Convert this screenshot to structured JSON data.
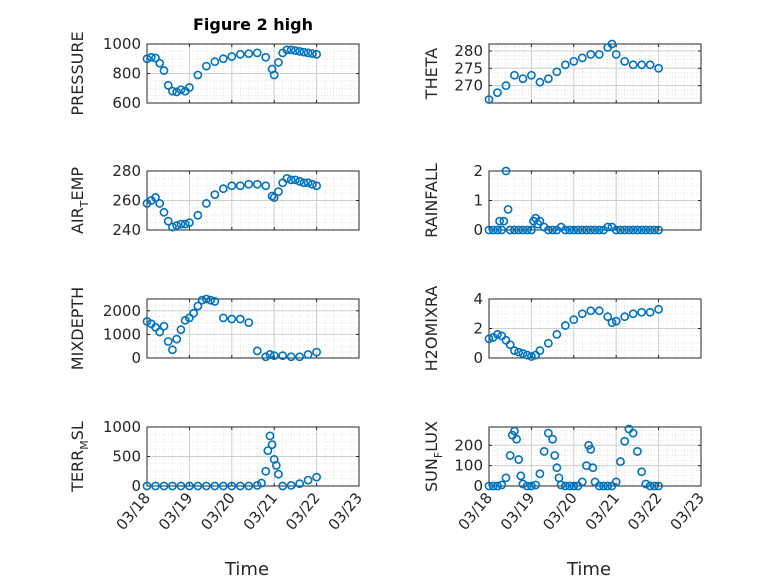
{
  "figure": {
    "title": "Figure 2 high",
    "x_tick_labels": [
      "03/18",
      "03/19",
      "03/20",
      "03/21",
      "03/22",
      "03/23"
    ],
    "x_label": "Time",
    "marker_color": "#0072BD",
    "marker": "open-circle"
  },
  "chart_data": [
    {
      "type": "scatter",
      "ylabel": "PRESSURE",
      "ylim": [
        600,
        1000
      ],
      "yticks": [
        600,
        800,
        1000
      ],
      "xlim": [
        0,
        5
      ],
      "grid": true,
      "x": [
        0,
        0.1,
        0.2,
        0.3,
        0.4,
        0.5,
        0.6,
        0.7,
        0.8,
        0.9,
        1.0,
        1.2,
        1.4,
        1.6,
        1.8,
        2.0,
        2.2,
        2.4,
        2.6,
        2.8,
        2.95,
        3.0,
        3.1,
        3.2,
        3.3,
        3.4,
        3.5,
        3.6,
        3.7,
        3.8,
        3.9,
        4.0
      ],
      "values": [
        900,
        910,
        905,
        870,
        820,
        720,
        680,
        675,
        690,
        680,
        705,
        790,
        850,
        880,
        900,
        915,
        930,
        935,
        940,
        910,
        830,
        790,
        875,
        940,
        960,
        960,
        955,
        950,
        945,
        940,
        935,
        930
      ]
    },
    {
      "type": "scatter",
      "ylabel": "THETA",
      "ylim": [
        265,
        282
      ],
      "yticks": [
        270,
        275,
        280
      ],
      "xlim": [
        0,
        5
      ],
      "grid": true,
      "x": [
        0,
        0.2,
        0.4,
        0.6,
        0.8,
        1.0,
        1.2,
        1.4,
        1.6,
        1.8,
        2.0,
        2.2,
        2.4,
        2.6,
        2.8,
        2.9,
        3.0,
        3.2,
        3.4,
        3.6,
        3.8,
        4.0
      ],
      "values": [
        266,
        268,
        270,
        273,
        272,
        273,
        271,
        272,
        274,
        276,
        277,
        278,
        279,
        279,
        281,
        282,
        279,
        277,
        276,
        276,
        276,
        275
      ]
    },
    {
      "type": "scatter",
      "ylabel": "AIR_TEMP",
      "ylim": [
        240,
        280
      ],
      "yticks": [
        240,
        260,
        280
      ],
      "xlim": [
        0,
        5
      ],
      "grid": true,
      "x": [
        0,
        0.1,
        0.2,
        0.3,
        0.4,
        0.5,
        0.6,
        0.7,
        0.8,
        0.9,
        1.0,
        1.2,
        1.4,
        1.6,
        1.8,
        2.0,
        2.2,
        2.4,
        2.6,
        2.8,
        2.95,
        3.0,
        3.1,
        3.2,
        3.3,
        3.4,
        3.5,
        3.6,
        3.7,
        3.8,
        3.9,
        4.0
      ],
      "values": [
        258,
        260,
        262,
        258,
        252,
        246,
        242,
        243,
        244,
        244,
        245,
        250,
        258,
        264,
        268,
        270,
        270,
        271,
        271,
        270,
        263,
        262,
        266,
        272,
        275,
        274,
        274,
        273,
        272,
        272,
        271,
        270
      ]
    },
    {
      "type": "scatter",
      "ylabel": "RAINFALL",
      "ylim": [
        0,
        2
      ],
      "yticks": [
        0,
        1,
        2
      ],
      "xlim": [
        0,
        5
      ],
      "grid": true,
      "x": [
        0,
        0.1,
        0.2,
        0.25,
        0.3,
        0.35,
        0.4,
        0.45,
        0.5,
        0.6,
        0.7,
        0.8,
        0.9,
        1.0,
        1.05,
        1.1,
        1.15,
        1.2,
        1.3,
        1.4,
        1.5,
        1.6,
        1.7,
        1.8,
        1.9,
        2.0,
        2.1,
        2.2,
        2.3,
        2.4,
        2.5,
        2.6,
        2.7,
        2.8,
        2.9,
        3.0,
        3.1,
        3.2,
        3.3,
        3.4,
        3.5,
        3.6,
        3.7,
        3.8,
        3.9,
        4.0
      ],
      "values": [
        0,
        0,
        0,
        0.3,
        0,
        0.3,
        2.0,
        0.7,
        0,
        0,
        0,
        0,
        0,
        0,
        0.3,
        0.4,
        0.2,
        0.3,
        0.1,
        0,
        0,
        0,
        0.1,
        0,
        0,
        0,
        0,
        0,
        0,
        0,
        0,
        0,
        0,
        0.1,
        0.1,
        0,
        0,
        0,
        0,
        0,
        0,
        0,
        0,
        0,
        0,
        0
      ]
    },
    {
      "type": "scatter",
      "ylabel": "MIXDEPTH",
      "ylim": [
        0,
        2500
      ],
      "yticks": [
        0,
        1000,
        2000
      ],
      "xlim": [
        0,
        5
      ],
      "grid": true,
      "x": [
        0,
        0.1,
        0.2,
        0.3,
        0.4,
        0.5,
        0.6,
        0.7,
        0.8,
        0.9,
        1.0,
        1.1,
        1.2,
        1.3,
        1.4,
        1.5,
        1.6,
        1.8,
        2.0,
        2.2,
        2.4,
        2.6,
        2.8,
        2.9,
        3.0,
        3.2,
        3.4,
        3.6,
        3.8,
        4.0
      ],
      "values": [
        1550,
        1450,
        1300,
        1100,
        1350,
        700,
        350,
        800,
        1200,
        1600,
        1700,
        1900,
        2200,
        2450,
        2500,
        2450,
        2400,
        1700,
        1650,
        1650,
        1500,
        300,
        50,
        150,
        100,
        100,
        50,
        50,
        150,
        250
      ]
    },
    {
      "type": "scatter",
      "ylabel": "H2OMIXRA",
      "ylim": [
        0,
        4
      ],
      "yticks": [
        0,
        2,
        4
      ],
      "xlim": [
        0,
        5
      ],
      "grid": true,
      "x": [
        0,
        0.1,
        0.2,
        0.3,
        0.4,
        0.5,
        0.6,
        0.7,
        0.8,
        0.9,
        1.0,
        1.1,
        1.2,
        1.4,
        1.6,
        1.8,
        2.0,
        2.2,
        2.4,
        2.6,
        2.8,
        2.9,
        3.0,
        3.2,
        3.4,
        3.6,
        3.8,
        4.0
      ],
      "values": [
        1.3,
        1.4,
        1.6,
        1.5,
        1.2,
        0.9,
        0.5,
        0.4,
        0.3,
        0.2,
        0.1,
        0.2,
        0.5,
        1.0,
        1.6,
        2.2,
        2.6,
        3.0,
        3.2,
        3.2,
        2.8,
        2.4,
        2.5,
        2.8,
        3.0,
        3.1,
        3.1,
        3.3
      ]
    },
    {
      "type": "scatter",
      "ylabel": "TERR_MSL",
      "ylim": [
        0,
        1000
      ],
      "yticks": [
        0,
        500,
        1000
      ],
      "xlim": [
        0,
        5
      ],
      "grid": true,
      "x": [
        0,
        0.2,
        0.4,
        0.6,
        0.8,
        1.0,
        1.2,
        1.4,
        1.6,
        1.8,
        2.0,
        2.2,
        2.4,
        2.6,
        2.7,
        2.8,
        2.85,
        2.9,
        2.95,
        3.0,
        3.05,
        3.1,
        3.2,
        3.4,
        3.6,
        3.8,
        4.0
      ],
      "values": [
        0,
        0,
        0,
        0,
        0,
        0,
        0,
        0,
        0,
        0,
        0,
        0,
        0,
        10,
        50,
        250,
        600,
        850,
        700,
        450,
        350,
        200,
        0,
        10,
        40,
        100,
        150
      ]
    },
    {
      "type": "scatter",
      "ylabel": "SUN_FLUX",
      "ylim": [
        0,
        290
      ],
      "yticks": [
        0,
        100,
        200
      ],
      "xlim": [
        0,
        5
      ],
      "grid": true,
      "x": [
        0,
        0.1,
        0.2,
        0.3,
        0.4,
        0.5,
        0.55,
        0.6,
        0.65,
        0.7,
        0.75,
        0.8,
        0.9,
        1.0,
        1.1,
        1.2,
        1.3,
        1.4,
        1.5,
        1.55,
        1.6,
        1.65,
        1.7,
        1.8,
        1.9,
        2.0,
        2.1,
        2.2,
        2.3,
        2.35,
        2.4,
        2.45,
        2.5,
        2.6,
        2.7,
        2.8,
        2.9,
        3.0,
        3.1,
        3.2,
        3.3,
        3.4,
        3.5,
        3.6,
        3.7,
        3.8,
        3.9,
        4.0
      ],
      "values": [
        0,
        0,
        0,
        5,
        40,
        150,
        250,
        270,
        230,
        130,
        50,
        10,
        0,
        0,
        5,
        60,
        170,
        260,
        230,
        150,
        90,
        40,
        5,
        0,
        0,
        0,
        0,
        20,
        100,
        200,
        180,
        90,
        20,
        0,
        0,
        0,
        0,
        20,
        120,
        220,
        280,
        260,
        170,
        70,
        10,
        0,
        0,
        0
      ]
    }
  ]
}
